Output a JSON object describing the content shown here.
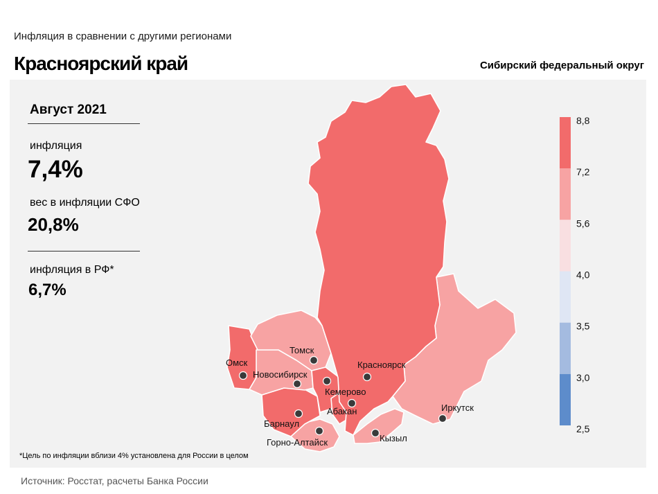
{
  "header": {
    "subtitle": "Инфляция  в сравнении  с другими  регионами",
    "title": "Красноярский край",
    "district": "Сибирский федеральный округ"
  },
  "summary": {
    "period": "Август 2021",
    "inflation_label": "инфляция",
    "inflation_value": "7,4%",
    "weight_label": "вес в инфляции  СФО",
    "weight_value": "20,8%",
    "rf_label": "инфляция  в РФ*",
    "rf_value": "6,7%"
  },
  "footnote": "*Цель по инфляции вблизи 4% установлена для России в целом",
  "source": "Источник: Росстат, расчеты Банка России",
  "legend": {
    "ticks": [
      "8,8",
      "7,2",
      "5,6",
      "4,0",
      "3,5",
      "3,0",
      "2,5"
    ],
    "colors": [
      "#f26b6b",
      "#f7a3a3",
      "#f9dfe1",
      "#dfe6f4",
      "#a4bbe0",
      "#5d8ccb"
    ]
  },
  "cities": [
    "Омск",
    "Томск",
    "Новосибирск",
    "Красноярск",
    "Кемерово",
    "Абакан",
    "Барнаул",
    "Горно-Алтайск",
    "Кызыл",
    "Иркутск"
  ],
  "map_colors": {
    "high": "#f26b6b",
    "mid": "#f7a3a3",
    "border": "#ffffff",
    "dot": "#3a3a3a"
  }
}
